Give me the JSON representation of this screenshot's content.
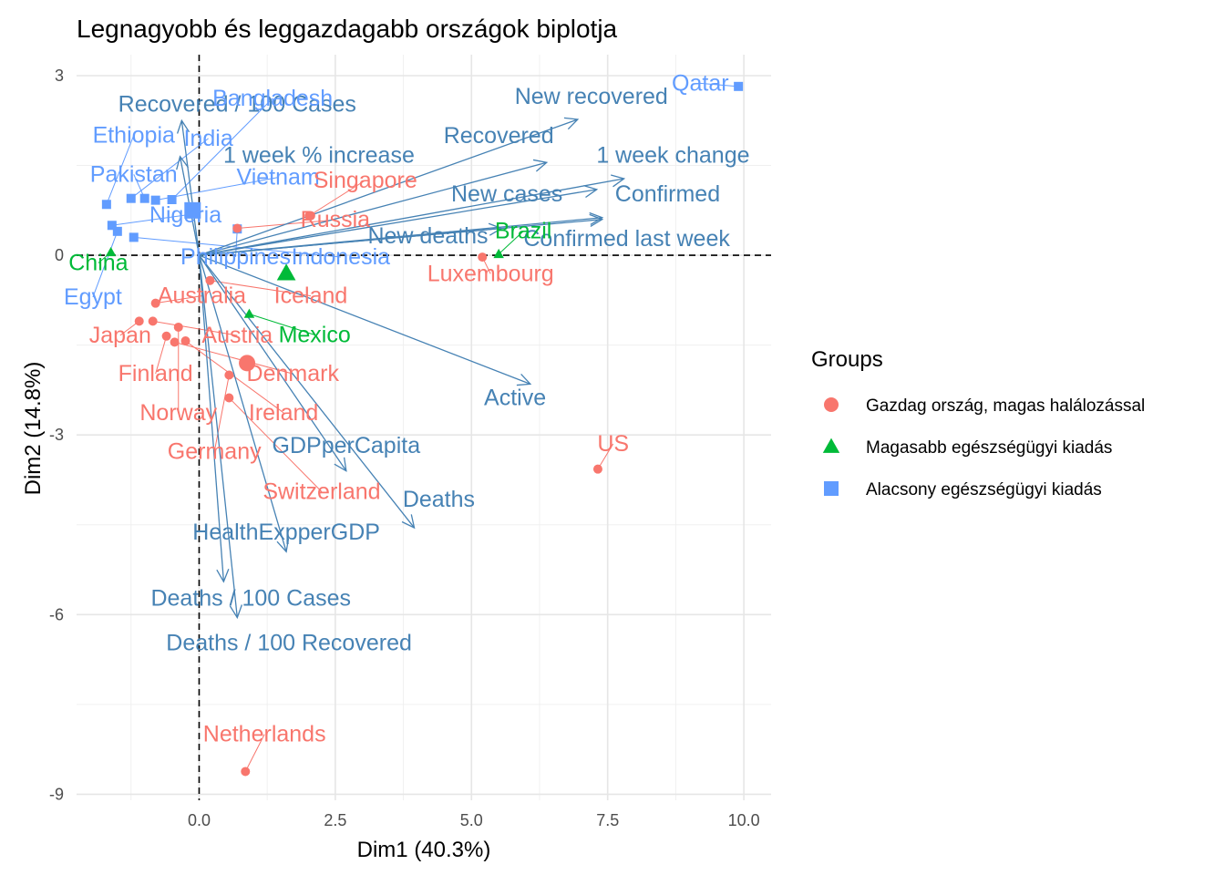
{
  "chart_data": {
    "type": "scatter",
    "title": "Legnagyobb és leggazdagabb országok biplotja",
    "xlabel": "Dim1 (40.3%)",
    "ylabel": "Dim2 (14.8%)",
    "xlim": [
      -2.25,
      10.5
    ],
    "ylim": [
      -9.1,
      3.35
    ],
    "x_ticks": [
      0,
      2.5,
      5,
      7.5,
      10
    ],
    "x_tick_labels": [
      "0.0",
      "2.5",
      "5.0",
      "7.5",
      "10.0"
    ],
    "y_ticks": [
      3,
      0,
      -3,
      -6,
      -9
    ],
    "y_tick_labels": [
      "3",
      "0",
      "-3",
      "-6",
      "-9"
    ],
    "grid": true,
    "reference_lines": [
      {
        "axis": "x",
        "value": 0,
        "style": "dashed"
      },
      {
        "axis": "y",
        "value": 0,
        "style": "dashed"
      }
    ],
    "legend": {
      "title": "Groups",
      "position": "right",
      "items": [
        {
          "label": "Gazdag ország, magas halálozással",
          "color": "#F8766D",
          "shape": "circle"
        },
        {
          "label": "Magasabb egészségügyi kiadás",
          "color": "#00BA38",
          "shape": "triangle"
        },
        {
          "label": "Alacsony egészségügyi kiadás",
          "color": "#619CFF",
          "shape": "square"
        }
      ]
    },
    "group_centroids": [
      {
        "group": 0,
        "x": 0.88,
        "y": -1.8
      },
      {
        "group": 1,
        "x": 1.6,
        "y": -0.3
      },
      {
        "group": 2,
        "x": -0.12,
        "y": 0.75
      }
    ],
    "points": [
      {
        "label": "Qatar",
        "group": 2,
        "x": 9.9,
        "y": 2.82,
        "lx": 9.2,
        "ly": 2.75
      },
      {
        "label": "Bangladesh",
        "group": 2,
        "x": -0.5,
        "y": 0.93,
        "lx": 1.35,
        "ly": 2.5
      },
      {
        "label": "Ethiopia",
        "group": 2,
        "x": -1.7,
        "y": 0.85,
        "lx": -1.2,
        "ly": 1.88
      },
      {
        "label": "India",
        "group": 2,
        "x": -1.25,
        "y": 0.95,
        "lx": 0.17,
        "ly": 1.83
      },
      {
        "label": "Pakistan",
        "group": 2,
        "x": -1.0,
        "y": 0.95,
        "lx": -1.2,
        "ly": 1.23
      },
      {
        "label": "Vietnam",
        "group": 2,
        "x": -0.8,
        "y": 0.92,
        "lx": 1.45,
        "ly": 1.18
      },
      {
        "label": "Nigeria",
        "group": 2,
        "x": -1.6,
        "y": 0.5,
        "lx": -0.25,
        "ly": 0.55
      },
      {
        "label": "Philippines",
        "group": 2,
        "x": 0.7,
        "y": 0.44,
        "lx": 0.67,
        "ly": -0.15
      },
      {
        "label": "Indonesia",
        "group": 2,
        "x": -1.2,
        "y": 0.3,
        "lx": 2.6,
        "ly": -0.15
      },
      {
        "label": "Egypt",
        "group": 2,
        "x": -1.5,
        "y": 0.4,
        "lx": -1.95,
        "ly": -0.82
      },
      {
        "label": "China",
        "group": 1,
        "x": -1.62,
        "y": 0.05,
        "lx": -1.85,
        "ly": -0.25
      },
      {
        "label": "Brazil",
        "group": 1,
        "x": 5.5,
        "y": 0.02,
        "lx": 5.95,
        "ly": 0.28
      },
      {
        "label": "Mexico",
        "group": 1,
        "x": 0.92,
        "y": -0.98,
        "lx": 2.12,
        "ly": -1.45
      },
      {
        "label": "Singapore",
        "group": 0,
        "x": 2.02,
        "y": 0.66,
        "lx": 3.05,
        "ly": 1.13
      },
      {
        "label": "Russia",
        "group": 0,
        "x": 0.7,
        "y": 0.45,
        "lx": 2.5,
        "ly": 0.47
      },
      {
        "label": "Luxembourg",
        "group": 0,
        "x": 5.2,
        "y": -0.03,
        "lx": 5.35,
        "ly": -0.43
      },
      {
        "label": "Australia",
        "group": 0,
        "x": -0.8,
        "y": -0.8,
        "lx": 0.05,
        "ly": -0.8
      },
      {
        "label": "Iceland",
        "group": 0,
        "x": 0.2,
        "y": -0.42,
        "lx": 2.05,
        "ly": -0.8
      },
      {
        "label": "Japan",
        "group": 0,
        "x": -1.1,
        "y": -1.1,
        "lx": -1.45,
        "ly": -1.46
      },
      {
        "label": "Austria",
        "group": 0,
        "x": -0.85,
        "y": -1.1,
        "lx": 0.7,
        "ly": -1.46
      },
      {
        "label": "Finland",
        "group": 0,
        "x": -0.6,
        "y": -1.35,
        "lx": -0.8,
        "ly": -2.1
      },
      {
        "label": "Denmark",
        "group": 0,
        "x": -0.45,
        "y": -1.45,
        "lx": 1.72,
        "ly": -2.1
      },
      {
        "label": "Norway",
        "group": 0,
        "x": -0.38,
        "y": -1.2,
        "lx": -0.38,
        "ly": -2.75
      },
      {
        "label": "Ireland",
        "group": 0,
        "x": -0.25,
        "y": -1.43,
        "lx": 1.55,
        "ly": -2.75
      },
      {
        "label": "Germany",
        "group": 0,
        "x": 0.55,
        "y": -2.0,
        "lx": 0.28,
        "ly": -3.4
      },
      {
        "label": "Switzerland",
        "group": 0,
        "x": 0.55,
        "y": -2.38,
        "lx": 2.25,
        "ly": -4.07
      },
      {
        "label": "US",
        "group": 0,
        "x": 7.32,
        "y": -3.57,
        "lx": 7.6,
        "ly": -3.27
      },
      {
        "label": "Netherlands",
        "group": 0,
        "x": 0.85,
        "y": -8.62,
        "lx": 1.2,
        "ly": -8.12
      }
    ],
    "variables": [
      {
        "label": "New recovered",
        "x": 6.95,
        "y": 2.27,
        "lx": 7.2,
        "ly": 2.53
      },
      {
        "label": "Recovered / 100 Cases",
        "x": -0.32,
        "y": 2.25,
        "lx": 0.7,
        "ly": 2.4
      },
      {
        "label": "Recovered",
        "x": 6.38,
        "y": 1.55,
        "lx": 5.5,
        "ly": 1.87
      },
      {
        "label": "1 week % increase",
        "x": -0.35,
        "y": 1.65,
        "lx": 2.2,
        "ly": 1.55
      },
      {
        "label": "1 week change",
        "x": 7.8,
        "y": 1.28,
        "lx": 8.7,
        "ly": 1.55
      },
      {
        "label": "New cases",
        "x": 7.3,
        "y": 1.1,
        "lx": 5.65,
        "ly": 0.9
      },
      {
        "label": "Confirmed",
        "x": 7.4,
        "y": 0.63,
        "lx": 8.6,
        "ly": 0.9
      },
      {
        "label": "New deaths",
        "x": 5.55,
        "y": 0.45,
        "lx": 4.2,
        "ly": 0.2
      },
      {
        "label": "Confirmed last week",
        "x": 7.4,
        "y": 0.6,
        "lx": 7.85,
        "ly": 0.15
      },
      {
        "label": "Active",
        "x": 6.08,
        "y": -2.15,
        "lx": 5.8,
        "ly": -2.5
      },
      {
        "label": "GDPperCapita",
        "x": 2.7,
        "y": -3.6,
        "lx": 2.7,
        "ly": -3.3
      },
      {
        "label": "Deaths",
        "x": 3.95,
        "y": -4.55,
        "lx": 4.4,
        "ly": -4.2
      },
      {
        "label": "HealthExpperGDP",
        "x": 1.6,
        "y": -4.95,
        "lx": 1.6,
        "ly": -4.75
      },
      {
        "label": "Deaths / 100 Cases",
        "x": 0.45,
        "y": -5.45,
        "lx": 0.95,
        "ly": -5.85
      },
      {
        "label": "Deaths / 100 Recovered",
        "x": 0.7,
        "y": -6.05,
        "lx": 1.65,
        "ly": -6.6
      }
    ]
  }
}
